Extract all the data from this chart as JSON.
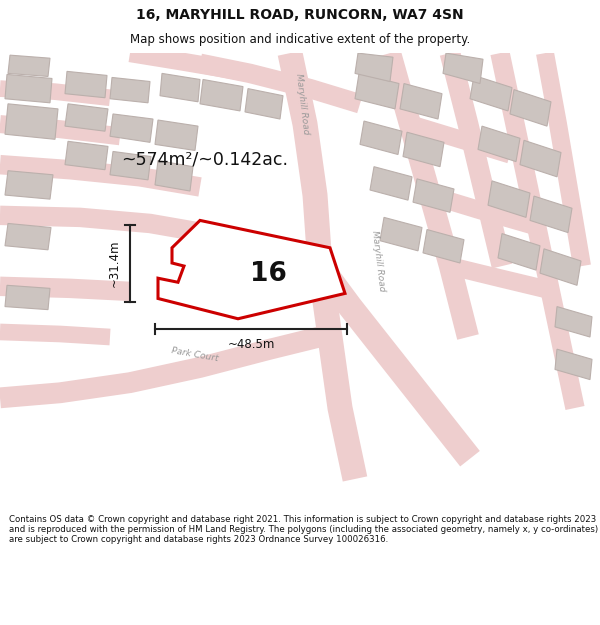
{
  "title": "16, MARYHILL ROAD, RUNCORN, WA7 4SN",
  "subtitle": "Map shows position and indicative extent of the property.",
  "area_text": "~574m²/~0.142ac.",
  "dim_width": "~48.5m",
  "dim_height": "~31.4m",
  "property_number": "16",
  "footer_text": "Contains OS data © Crown copyright and database right 2021. This information is subject to Crown copyright and database rights 2023 and is reproduced with the permission of HM Land Registry. The polygons (including the associated geometry, namely x, y co-ordinates) are subject to Crown copyright and database rights 2023 Ordnance Survey 100026316.",
  "map_bg_color": "#f2ebe8",
  "road_color": "#eecece",
  "building_color": "#ccc4c0",
  "building_outline_color": "#bbb0ac",
  "property_fill": "#ffffff",
  "property_outline_color": "#cc0000",
  "dim_line_color": "#222222",
  "title_fontsize": 10,
  "subtitle_fontsize": 8.5,
  "footer_fontsize": 6.2
}
